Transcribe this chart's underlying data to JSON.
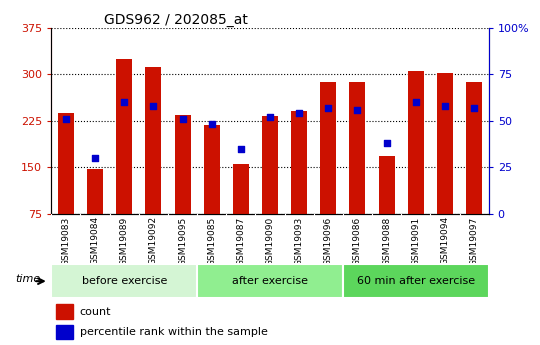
{
  "title": "GDS962 / 202085_at",
  "categories": [
    "GSM19083",
    "GSM19084",
    "GSM19089",
    "GSM19092",
    "GSM19095",
    "GSM19085",
    "GSM19087",
    "GSM19090",
    "GSM19093",
    "GSM19096",
    "GSM19086",
    "GSM19088",
    "GSM19091",
    "GSM19094",
    "GSM19097"
  ],
  "counts": [
    237,
    148,
    325,
    312,
    235,
    218,
    155,
    232,
    240,
    288,
    288,
    168,
    305,
    302,
    288
  ],
  "percentile_ranks": [
    51,
    30,
    60,
    58,
    51,
    48,
    35,
    52,
    54,
    57,
    56,
    38,
    60,
    58,
    57
  ],
  "groups": [
    {
      "label": "before exercise",
      "start": 0,
      "end": 5,
      "color": "#d4f5d4"
    },
    {
      "label": "after exercise",
      "start": 5,
      "end": 10,
      "color": "#90ee90"
    },
    {
      "label": "60 min after exercise",
      "start": 10,
      "end": 15,
      "color": "#5cd65c"
    }
  ],
  "ylim_left": [
    75,
    375
  ],
  "ylim_right": [
    0,
    100
  ],
  "yticks_left": [
    75,
    150,
    225,
    300,
    375
  ],
  "yticks_right": [
    0,
    25,
    50,
    75,
    100
  ],
  "bar_color": "#cc1100",
  "dot_color": "#0000cc",
  "title_fontsize": 10,
  "tick_label_fontsize": 6.5,
  "legend_fontsize": 8,
  "group_label_fontsize": 8,
  "axis_label_color_left": "#cc1100",
  "axis_label_color_right": "#0000cc",
  "bg_plot": "#ffffff",
  "bg_xtick": "#c8c8c8"
}
